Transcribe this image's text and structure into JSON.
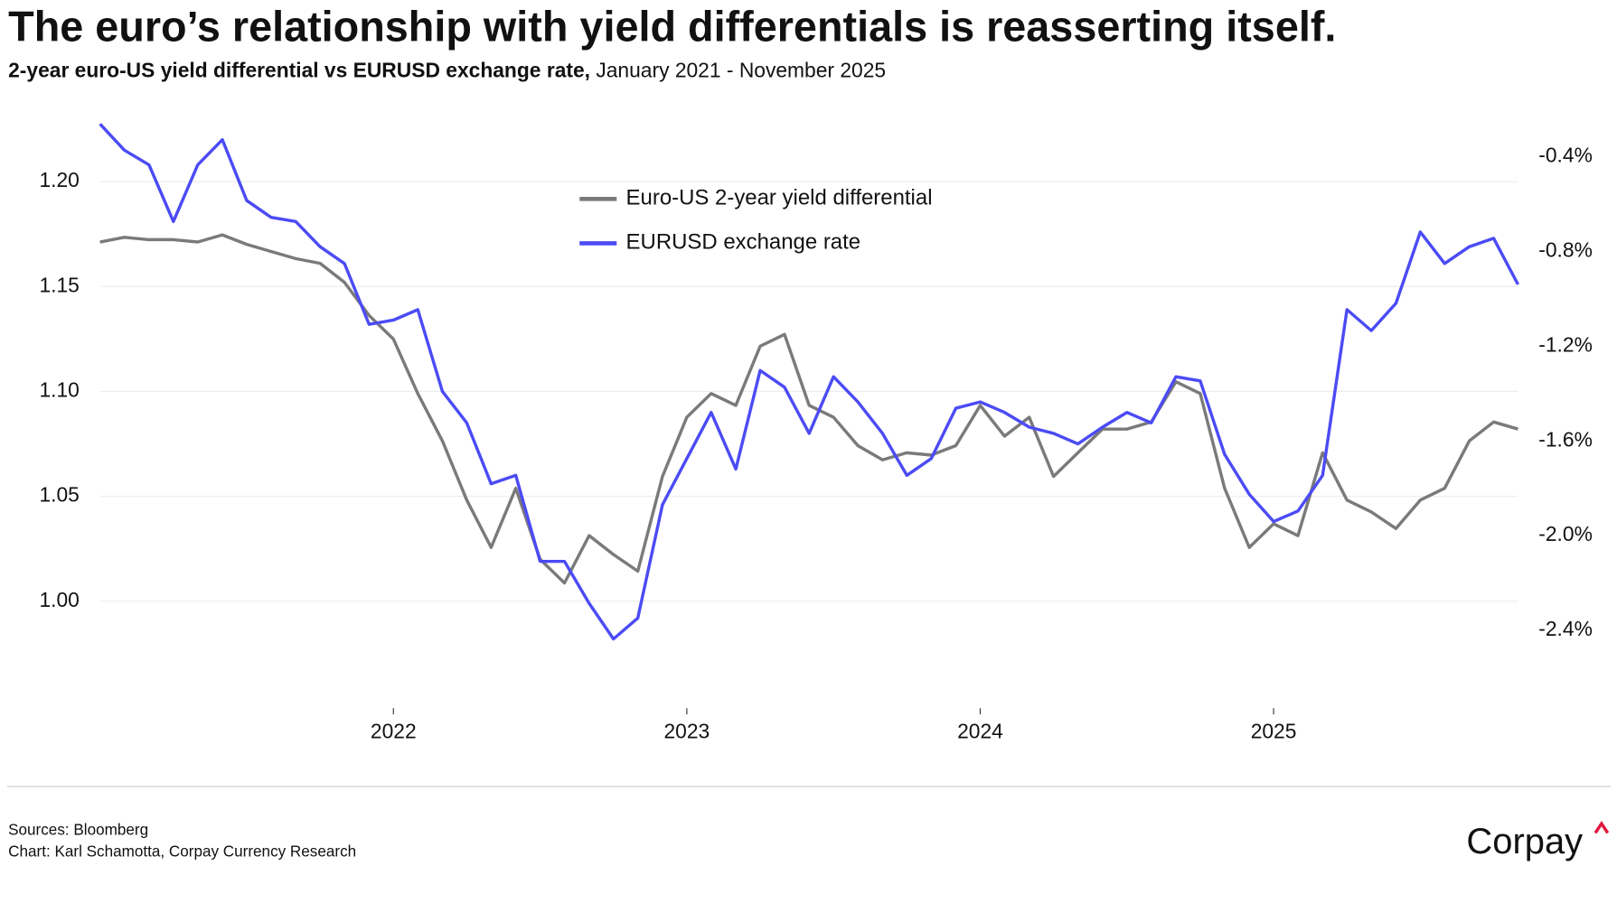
{
  "chart_data": {
    "type": "line",
    "title": "The euro’s relationship with yield differentials is reasserting itself.",
    "subtitle": "2-year euro-US yield differential vs EURUSD exchange rate,",
    "subtitle_period": "January 2021 - November 2025",
    "sources": "Sources: Bloomberg",
    "credit": "Chart: Karl Schamotta, Corpay Currency Research",
    "brand": "Corpay",
    "legend": "upper center",
    "grid": true,
    "x": [
      2021,
      2021.083,
      2021.167,
      2021.25,
      2021.333,
      2021.417,
      2021.5,
      2021.583,
      2021.667,
      2021.75,
      2021.833,
      2021.917,
      2022,
      2022.083,
      2022.167,
      2022.25,
      2022.333,
      2022.417,
      2022.5,
      2022.583,
      2022.667,
      2022.75,
      2022.833,
      2022.917,
      2023,
      2023.083,
      2023.167,
      2023.25,
      2023.333,
      2023.417,
      2023.5,
      2023.583,
      2023.667,
      2023.75,
      2023.833,
      2023.917,
      2024,
      2024.083,
      2024.167,
      2024.25,
      2024.333,
      2024.417,
      2024.5,
      2024.583,
      2024.667,
      2024.75,
      2024.833,
      2024.917,
      2025,
      2025.083,
      2025.167,
      2025.25,
      2025.333,
      2025.417,
      2025.5,
      2025.583,
      2025.667,
      2025.75,
      2025.833
    ],
    "xlim": [
      2021,
      2025.833
    ],
    "xticks": [
      2022,
      2023,
      2024,
      2025
    ],
    "ylim": [
      0.95,
      1.235
    ],
    "yticks": [
      {
        "value": 1,
        "label": "1.00"
      },
      1.05,
      {
        "value": 1.1,
        "label": "1.10"
      },
      1.15,
      {
        "value": 1.2,
        "label": "1.20"
      }
    ],
    "y2lim": [
      -2.72,
      -0.195
    ],
    "y2ticks": [
      {
        "value": -2.4,
        "label": "-2.4%"
      },
      {
        "value": -2.0,
        "label": "-2.0%"
      },
      {
        "value": -1.6,
        "label": "-1.6%"
      },
      {
        "value": -1.2,
        "label": "-1.2%"
      },
      {
        "value": -0.8,
        "label": "-0.8%"
      },
      {
        "value": -0.4,
        "label": "-0.4%"
      }
    ],
    "series": [
      {
        "name": "Euro-US 2-year yield differential",
        "color": "#7a7a7a",
        "axis": "y2",
        "values": [
          -0.76,
          -0.74,
          -0.75,
          -0.75,
          -0.76,
          -0.73,
          -0.77,
          -0.8,
          -0.83,
          -0.85,
          -0.93,
          -1.07,
          -1.17,
          -1.4,
          -1.6,
          -1.85,
          -2.05,
          -1.8,
          -2.1,
          -2.2,
          -2.0,
          -2.08,
          -2.15,
          -1.75,
          -1.5,
          -1.4,
          -1.45,
          -1.2,
          -1.15,
          -1.45,
          -1.5,
          -1.62,
          -1.68,
          -1.65,
          -1.66,
          -1.62,
          -1.45,
          -1.58,
          -1.5,
          -1.75,
          -1.65,
          -1.55,
          -1.55,
          -1.52,
          -1.35,
          -1.4,
          -1.8,
          -2.05,
          -1.95,
          -2.0,
          -1.65,
          -1.85,
          -1.9,
          -1.97,
          -1.85,
          -1.8,
          -1.6,
          -1.52,
          -1.55
        ]
      },
      {
        "name": "EURUSD exchange rate",
        "color": "#4b4bf5",
        "values": [
          1.2275,
          1.215,
          1.208,
          1.181,
          1.208,
          1.22,
          1.191,
          1.183,
          1.181,
          1.169,
          1.161,
          1.132,
          1.134,
          1.139,
          1.1,
          1.085,
          1.056,
          1.06,
          1.019,
          1.019,
          0.999,
          0.982,
          0.992,
          1.046,
          1.068,
          1.09,
          1.063,
          1.11,
          1.102,
          1.08,
          1.107,
          1.095,
          1.08,
          1.06,
          1.068,
          1.092,
          1.095,
          1.09,
          1.083,
          1.08,
          1.075,
          1.083,
          1.09,
          1.085,
          1.107,
          1.105,
          1.07,
          1.051,
          1.038,
          1.043,
          1.06,
          1.139,
          1.129,
          1.142,
          1.176,
          1.161,
          1.169,
          1.173,
          1.151
        ]
      }
    ]
  }
}
